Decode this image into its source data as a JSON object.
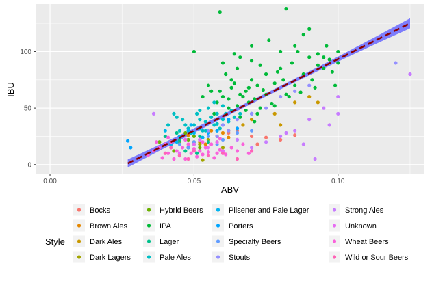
{
  "chart_data": {
    "type": "scatter",
    "title": "",
    "xlabel": "ABV",
    "ylabel": "IBU",
    "xlim": [
      -0.005,
      0.13
    ],
    "ylim": [
      -8,
      142
    ],
    "x_ticks": [
      0.0,
      0.05,
      0.1
    ],
    "x_tick_labels": [
      "0.00",
      "0.05",
      "0.10"
    ],
    "y_ticks": [
      0,
      50,
      100
    ],
    "y_tick_labels": [
      "0",
      "50",
      "100"
    ],
    "grid": true,
    "legend_position": "bottom",
    "legend_title": "Style",
    "background": "#ebebeb",
    "regression": {
      "type": "linear",
      "line_style": "dashed",
      "line_color": "#8b0000",
      "band_color": "#6a6aff",
      "points": [
        [
          0.027,
          1
        ],
        [
          0.125,
          125
        ]
      ],
      "band_halfwidth_ends": [
        3.5,
        4.5
      ],
      "band_halfwidth_mid": 1.5
    },
    "series": [
      {
        "name": "Bocks",
        "color": "#F8766D",
        "points": [
          [
            0.062,
            28
          ],
          [
            0.07,
            25
          ],
          [
            0.075,
            24
          ],
          [
            0.08,
            22
          ],
          [
            0.065,
            30
          ],
          [
            0.072,
            18
          ],
          [
            0.058,
            20
          ],
          [
            0.085,
            26
          ]
        ]
      },
      {
        "name": "Brown Ales",
        "color": "#E58700",
        "points": [
          [
            0.055,
            22
          ],
          [
            0.058,
            25
          ],
          [
            0.06,
            28
          ],
          [
            0.052,
            20
          ],
          [
            0.056,
            30
          ],
          [
            0.062,
            24
          ],
          [
            0.048,
            26
          ],
          [
            0.054,
            18
          ]
        ]
      },
      {
        "name": "Dark Ales",
        "color": "#C99800",
        "points": [
          [
            0.062,
            30
          ],
          [
            0.067,
            35
          ],
          [
            0.07,
            40
          ],
          [
            0.078,
            45
          ],
          [
            0.085,
            55
          ],
          [
            0.09,
            60
          ],
          [
            0.093,
            55
          ],
          [
            0.08,
            35
          ]
        ]
      },
      {
        "name": "Dark Lagers",
        "color": "#A3A500",
        "points": [
          [
            0.05,
            20
          ],
          [
            0.052,
            18
          ],
          [
            0.055,
            22
          ],
          [
            0.048,
            15
          ],
          [
            0.058,
            25
          ],
          [
            0.045,
            19
          ],
          [
            0.053,
            4
          ],
          [
            0.06,
            15
          ]
        ]
      },
      {
        "name": "Hybrid Beers",
        "color": "#6BB100",
        "points": [
          [
            0.042,
            18
          ],
          [
            0.045,
            20
          ],
          [
            0.048,
            22
          ],
          [
            0.05,
            25
          ],
          [
            0.043,
            12
          ],
          [
            0.047,
            28
          ],
          [
            0.052,
            15
          ],
          [
            0.038,
            20
          ]
        ]
      },
      {
        "name": "IPA",
        "color": "#00BA38",
        "points": [
          [
            0.059,
            135
          ],
          [
            0.082,
            138
          ],
          [
            0.09,
            120
          ],
          [
            0.088,
            115
          ],
          [
            0.065,
            85
          ],
          [
            0.07,
            75
          ],
          [
            0.068,
            65
          ],
          [
            0.063,
            68
          ],
          [
            0.072,
            70
          ],
          [
            0.075,
            80
          ],
          [
            0.06,
            60
          ],
          [
            0.058,
            55
          ],
          [
            0.062,
            50
          ],
          [
            0.066,
            62
          ],
          [
            0.071,
            58
          ],
          [
            0.074,
            66
          ],
          [
            0.078,
            72
          ],
          [
            0.08,
            85
          ],
          [
            0.084,
            90
          ],
          [
            0.086,
            100
          ],
          [
            0.09,
            95
          ],
          [
            0.095,
            95
          ],
          [
            0.095,
            85
          ],
          [
            0.097,
            93
          ],
          [
            0.1,
            100
          ],
          [
            0.1,
            90
          ],
          [
            0.099,
            70
          ],
          [
            0.07,
            105
          ],
          [
            0.076,
            110
          ],
          [
            0.08,
            100
          ],
          [
            0.085,
            105
          ],
          [
            0.061,
            80
          ],
          [
            0.055,
            70
          ],
          [
            0.064,
            72
          ],
          [
            0.067,
            60
          ],
          [
            0.069,
            55
          ],
          [
            0.073,
            50
          ],
          [
            0.077,
            54
          ],
          [
            0.083,
            60
          ],
          [
            0.087,
            64
          ],
          [
            0.092,
            68
          ],
          [
            0.05,
            100
          ],
          [
            0.053,
            60
          ],
          [
            0.056,
            65
          ],
          [
            0.059,
            65
          ],
          [
            0.062,
            58
          ],
          [
            0.065,
            52
          ],
          [
            0.068,
            48
          ],
          [
            0.072,
            45
          ],
          [
            0.078,
            52
          ],
          [
            0.082,
            62
          ],
          [
            0.088,
            80
          ],
          [
            0.093,
            88
          ],
          [
            0.07,
            92
          ],
          [
            0.066,
            95
          ],
          [
            0.06,
            90
          ],
          [
            0.064,
            98
          ],
          [
            0.073,
            88
          ],
          [
            0.079,
            82
          ],
          [
            0.091,
            75
          ],
          [
            0.093,
            98
          ],
          [
            0.096,
            105
          ],
          [
            0.098,
            82
          ],
          [
            0.085,
            70
          ],
          [
            0.081,
            75
          ],
          [
            0.075,
            62
          ],
          [
            0.069,
            68
          ],
          [
            0.063,
            75
          ],
          [
            0.057,
            45
          ],
          [
            0.066,
            42
          ],
          [
            0.071,
            38
          ]
        ]
      },
      {
        "name": "Lager",
        "color": "#00C08B",
        "points": [
          [
            0.042,
            20
          ],
          [
            0.045,
            22
          ],
          [
            0.05,
            18
          ],
          [
            0.048,
            15
          ],
          [
            0.052,
            25
          ],
          [
            0.055,
            20
          ],
          [
            0.04,
            25
          ],
          [
            0.058,
            30
          ],
          [
            0.047,
            12
          ],
          [
            0.044,
            28
          ],
          [
            0.051,
            10
          ]
        ]
      },
      {
        "name": "Pale Ales",
        "color": "#00BFC4",
        "points": [
          [
            0.05,
            35
          ],
          [
            0.052,
            40
          ],
          [
            0.054,
            38
          ],
          [
            0.056,
            42
          ],
          [
            0.058,
            45
          ],
          [
            0.06,
            40
          ],
          [
            0.055,
            50
          ],
          [
            0.053,
            30
          ],
          [
            0.057,
            35
          ],
          [
            0.059,
            32
          ],
          [
            0.061,
            45
          ],
          [
            0.063,
            48
          ],
          [
            0.048,
            32
          ],
          [
            0.046,
            40
          ],
          [
            0.051,
            45
          ],
          [
            0.049,
            28
          ],
          [
            0.055,
            28
          ],
          [
            0.057,
            55
          ],
          [
            0.062,
            38
          ],
          [
            0.064,
            42
          ],
          [
            0.06,
            52
          ],
          [
            0.047,
            35
          ],
          [
            0.044,
            42
          ],
          [
            0.052,
            48
          ],
          [
            0.054,
            30
          ],
          [
            0.058,
            36
          ],
          [
            0.066,
            45
          ],
          [
            0.045,
            30
          ],
          [
            0.041,
            35
          ],
          [
            0.043,
            45
          ]
        ]
      },
      {
        "name": "Pilsener and Pale Lager",
        "color": "#00B4F0",
        "points": [
          [
            0.042,
            18
          ],
          [
            0.045,
            25
          ],
          [
            0.048,
            30
          ],
          [
            0.05,
            28
          ],
          [
            0.052,
            32
          ],
          [
            0.047,
            22
          ],
          [
            0.044,
            20
          ],
          [
            0.049,
            35
          ],
          [
            0.053,
            24
          ],
          [
            0.04,
            30
          ]
        ]
      },
      {
        "name": "Porters",
        "color": "#00A5FF",
        "points": [
          [
            0.027,
            21
          ],
          [
            0.028,
            15
          ],
          [
            0.06,
            35
          ],
          [
            0.062,
            40
          ],
          [
            0.065,
            32
          ],
          [
            0.058,
            30
          ],
          [
            0.07,
            45
          ],
          [
            0.055,
            28
          ]
        ]
      },
      {
        "name": "Specialty Beers",
        "color": "#619CFF",
        "points": [
          [
            0.045,
            18
          ],
          [
            0.05,
            20
          ],
          [
            0.055,
            25
          ],
          [
            0.06,
            22
          ],
          [
            0.065,
            28
          ],
          [
            0.048,
            15
          ],
          [
            0.052,
            22
          ],
          [
            0.07,
            30
          ],
          [
            0.058,
            18
          ]
        ]
      },
      {
        "name": "Stouts",
        "color": "#9590FF",
        "points": [
          [
            0.055,
            30
          ],
          [
            0.06,
            35
          ],
          [
            0.065,
            40
          ],
          [
            0.07,
            45
          ],
          [
            0.075,
            50
          ],
          [
            0.08,
            60
          ],
          [
            0.085,
            65
          ],
          [
            0.09,
            70
          ],
          [
            0.12,
            90
          ],
          [
            0.058,
            25
          ],
          [
            0.062,
            30
          ]
        ]
      },
      {
        "name": "Strong Ales",
        "color": "#C77CFF",
        "points": [
          [
            0.125,
            80
          ],
          [
            0.1,
            60
          ],
          [
            0.095,
            50
          ],
          [
            0.09,
            40
          ],
          [
            0.092,
            5
          ],
          [
            0.085,
            30
          ],
          [
            0.08,
            25
          ],
          [
            0.075,
            20
          ],
          [
            0.07,
            15
          ],
          [
            0.065,
            22
          ],
          [
            0.1,
            45
          ],
          [
            0.097,
            35
          ],
          [
            0.036,
            45
          ],
          [
            0.088,
            18
          ],
          [
            0.082,
            28
          ]
        ]
      },
      {
        "name": "Unknown",
        "color": "#E76BF3",
        "points": [
          [
            0.05,
            18
          ],
          [
            0.052,
            22
          ],
          [
            0.055,
            15
          ],
          [
            0.058,
            20
          ],
          [
            0.06,
            12
          ],
          [
            0.045,
            10
          ]
        ]
      },
      {
        "name": "Wheat Beers",
        "color": "#FA62DB",
        "points": [
          [
            0.038,
            15
          ],
          [
            0.04,
            18
          ],
          [
            0.042,
            20
          ],
          [
            0.044,
            12
          ],
          [
            0.046,
            15
          ],
          [
            0.048,
            18
          ],
          [
            0.05,
            14
          ],
          [
            0.052,
            12
          ],
          [
            0.054,
            15
          ],
          [
            0.056,
            18
          ],
          [
            0.058,
            10
          ],
          [
            0.036,
            12
          ],
          [
            0.034,
            8
          ],
          [
            0.039,
            6
          ],
          [
            0.041,
            10
          ],
          [
            0.043,
            5
          ],
          [
            0.045,
            8
          ],
          [
            0.047,
            5
          ],
          [
            0.049,
            10
          ],
          [
            0.051,
            7
          ],
          [
            0.053,
            9
          ],
          [
            0.055,
            11
          ],
          [
            0.057,
            6
          ],
          [
            0.059,
            13
          ],
          [
            0.061,
            9
          ],
          [
            0.063,
            15
          ],
          [
            0.065,
            12
          ],
          [
            0.067,
            18
          ],
          [
            0.069,
            10
          ],
          [
            0.037,
            20
          ],
          [
            0.041,
            24
          ],
          [
            0.047,
            22
          ],
          [
            0.053,
            20
          ],
          [
            0.059,
            23
          ]
        ]
      },
      {
        "name": "Wild or Sour Beers",
        "color": "#FF63B6",
        "points": [
          [
            0.04,
            10
          ],
          [
            0.045,
            8
          ],
          [
            0.05,
            12
          ],
          [
            0.055,
            8
          ],
          [
            0.06,
            10
          ],
          [
            0.065,
            5
          ],
          [
            0.07,
            12
          ],
          [
            0.042,
            15
          ],
          [
            0.048,
            5
          ]
        ]
      }
    ]
  }
}
